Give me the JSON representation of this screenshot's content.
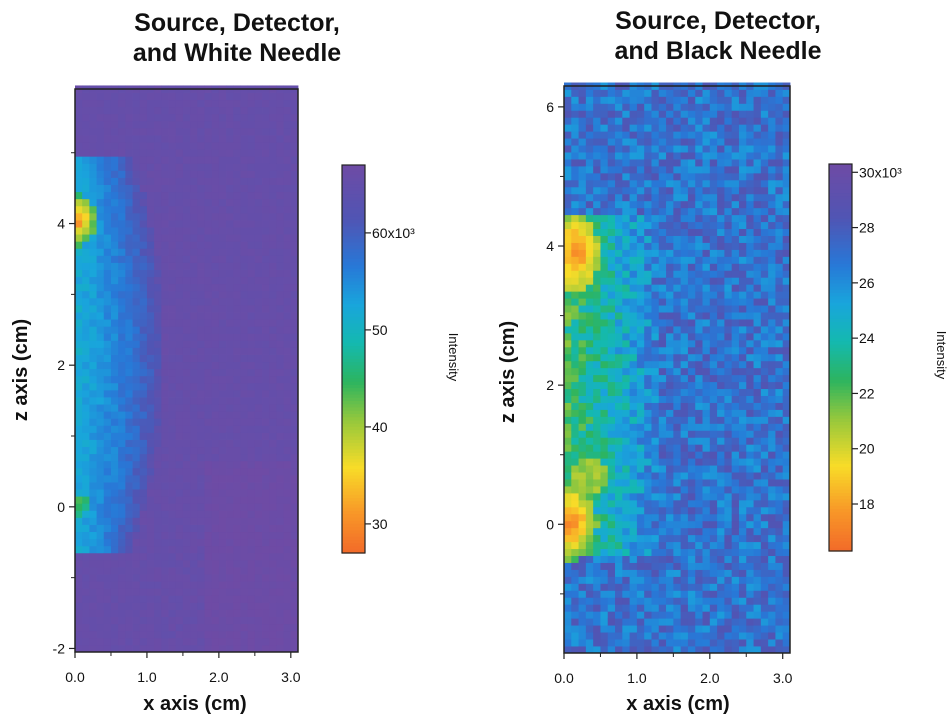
{
  "chart_data": [
    {
      "type": "heatmap",
      "title": "Source, Detector,\nand White Needle",
      "title_lines": [
        "Source, Detector,",
        "and White Needle"
      ],
      "xlabel": "x axis (cm)",
      "ylabel": "z axis (cm)",
      "xlim": [
        0.0,
        3.1
      ],
      "ylim": [
        -2.05,
        5.9
      ],
      "xticks": [
        0.0,
        1.0,
        2.0,
        3.0
      ],
      "xtick_labels": [
        "0.0",
        "1.0",
        "2.0",
        "3.0"
      ],
      "yticks": [
        -2,
        0,
        2,
        4
      ],
      "ytick_labels": [
        "-2",
        "0",
        "2",
        "4"
      ],
      "pixel_size_cm": 0.1,
      "grid": "x 0.0–3.1 cm, z -2.05–5.9 cm, 0.1 cm bins",
      "colormap": "Rainbow (orange-yellow-green-cyan-blue-purple)",
      "colorbar": {
        "label": "Intensity",
        "range": [
          27000,
          67000
        ],
        "ticks": [
          30000,
          40000,
          50000,
          60000
        ],
        "tick_labels": [
          "30",
          "40",
          "50",
          "60x10³"
        ]
      },
      "features": {
        "background_intensity": 65500,
        "bright_region": {
          "x_range": [
            0.0,
            1.3
          ],
          "z_range": [
            -0.55,
            4.9
          ],
          "min_intensity": 51000
        },
        "hot_spot": {
          "x": 0.05,
          "z": 4.05,
          "min_intensity": 27500
        },
        "secondary_spot": {
          "x": 0.05,
          "z": 0.0,
          "intensity": 43000
        }
      }
    },
    {
      "type": "heatmap",
      "title": "Source, Detector,\nand Black Needle",
      "title_lines": [
        "Source, Detector,",
        "and Black Needle"
      ],
      "xlabel": "x axis (cm)",
      "ylabel": "z axis (cm)",
      "xlim": [
        0.0,
        3.1
      ],
      "ylim": [
        -1.85,
        6.3
      ],
      "xticks": [
        0.0,
        1.0,
        2.0,
        3.0
      ],
      "xtick_labels": [
        "0.0",
        "1.0",
        "2.0",
        "3.0"
      ],
      "yticks": [
        0,
        2,
        4,
        6
      ],
      "ytick_labels": [
        "0",
        "2",
        "4",
        "6"
      ],
      "pixel_size_cm": 0.1,
      "grid": "x 0.0–3.1 cm, z -1.85–6.3 cm, 0.1 cm bins",
      "colormap": "Rainbow (orange-yellow-green-cyan-blue-purple)",
      "colorbar": {
        "label": "Intensity",
        "range": [
          16300,
          30300
        ],
        "ticks": [
          18000,
          20000,
          22000,
          24000,
          26000,
          28000,
          30000
        ],
        "tick_labels": [
          "18",
          "20",
          "22",
          "24",
          "26",
          "28",
          "30x10³"
        ]
      },
      "features": {
        "background_intensity": 27000,
        "low_region": {
          "x_range": [
            0.0,
            1.2
          ],
          "z_range": [
            -0.4,
            4.4
          ],
          "intensity": 22500
        },
        "hot_spot": {
          "x": 0.1,
          "z": 3.9,
          "min_intensity": 17000
        },
        "secondary_spot": {
          "x": 0.05,
          "z": 0.0,
          "min_intensity": 16800
        }
      }
    }
  ]
}
